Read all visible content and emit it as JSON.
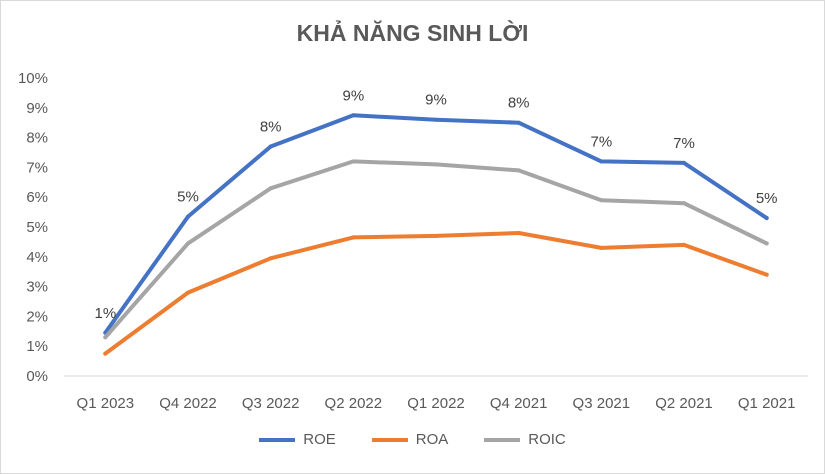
{
  "chart_data": {
    "type": "line",
    "title": "KHẢ NĂNG SINH LỜI",
    "categories": [
      "Q1 2023",
      "Q4 2022",
      "Q3 2022",
      "Q2 2022",
      "Q1 2022",
      "Q4 2021",
      "Q3 2021",
      "Q2 2021",
      "Q1 2021"
    ],
    "ylim": [
      0,
      10
    ],
    "yticks": [
      "0%",
      "1%",
      "2%",
      "3%",
      "4%",
      "5%",
      "6%",
      "7%",
      "8%",
      "9%",
      "10%"
    ],
    "grid": false,
    "legend_position": "bottom",
    "series": [
      {
        "name": "ROE",
        "color": "#4472c4",
        "values": [
          1.45,
          5.35,
          7.7,
          8.75,
          8.6,
          8.5,
          7.2,
          7.15,
          5.3
        ],
        "data_labels": [
          "1%",
          "5%",
          "8%",
          "9%",
          "9%",
          "8%",
          "7%",
          "7%",
          "5%"
        ]
      },
      {
        "name": "ROA",
        "color": "#ed7d31",
        "values": [
          0.75,
          2.8,
          3.95,
          4.65,
          4.7,
          4.8,
          4.3,
          4.4,
          3.4
        ]
      },
      {
        "name": "ROIC",
        "color": "#a5a5a5",
        "values": [
          1.3,
          4.45,
          6.3,
          7.2,
          7.1,
          6.9,
          5.9,
          5.8,
          4.45
        ]
      }
    ]
  }
}
